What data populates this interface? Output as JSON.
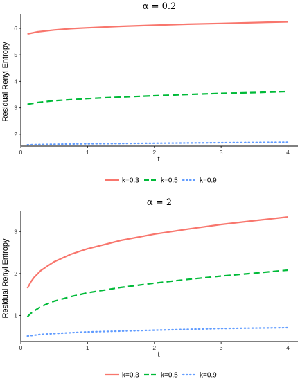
{
  "chart_data": [
    {
      "type": "line",
      "title": "α = 0.2",
      "xlabel": "t",
      "ylabel": "Residual Renyi Entropy",
      "xlim": [
        0,
        4.15
      ],
      "ylim": [
        1.55,
        6.55
      ],
      "xticks": [
        "0",
        "1",
        "2",
        "3",
        "4"
      ],
      "yticks": [
        "2",
        "3",
        "4",
        "5",
        "6"
      ],
      "grid": false,
      "legend_position": "bottom",
      "x": [
        0.1,
        0.25,
        0.5,
        0.75,
        1.0,
        1.5,
        2.0,
        2.5,
        3.0,
        3.5,
        4.0
      ],
      "series": [
        {
          "name": "k=0.3",
          "color": "#F8766D",
          "dash": "solid",
          "values": [
            5.79,
            5.87,
            5.94,
            5.99,
            6.02,
            6.08,
            6.12,
            6.16,
            6.19,
            6.22,
            6.25
          ]
        },
        {
          "name": "k=0.5",
          "color": "#00BA38",
          "dash": "dashed",
          "values": [
            3.13,
            3.2,
            3.27,
            3.31,
            3.35,
            3.41,
            3.46,
            3.51,
            3.55,
            3.58,
            3.62
          ]
        },
        {
          "name": "k=0.9",
          "color": "#619CFF",
          "dash": "dotted",
          "values": [
            1.6,
            1.61,
            1.62,
            1.63,
            1.64,
            1.65,
            1.66,
            1.67,
            1.68,
            1.69,
            1.7
          ]
        }
      ]
    },
    {
      "type": "line",
      "title": "α = 2",
      "xlabel": "t",
      "ylabel": "Residual Renyi Entropy",
      "xlim": [
        0,
        4.15
      ],
      "ylim": [
        0.38,
        3.5
      ],
      "xticks": [
        "0",
        "1",
        "2",
        "3",
        "4"
      ],
      "yticks": [
        "1",
        "2",
        "3"
      ],
      "grid": false,
      "legend_position": "bottom",
      "x": [
        0.1,
        0.15,
        0.2,
        0.3,
        0.4,
        0.5,
        0.75,
        1.0,
        1.5,
        2.0,
        2.5,
        3.0,
        3.5,
        4.0
      ],
      "series": [
        {
          "name": "k=0.3",
          "color": "#F8766D",
          "dash": "solid",
          "values": [
            1.65,
            1.8,
            1.91,
            2.07,
            2.18,
            2.28,
            2.46,
            2.59,
            2.79,
            2.94,
            3.06,
            3.17,
            3.26,
            3.35
          ]
        },
        {
          "name": "k=0.5",
          "color": "#00BA38",
          "dash": "dashed",
          "values": [
            0.97,
            1.05,
            1.11,
            1.21,
            1.28,
            1.34,
            1.45,
            1.54,
            1.67,
            1.77,
            1.86,
            1.94,
            2.01,
            2.08
          ]
        },
        {
          "name": "k=0.9",
          "color": "#619CFF",
          "dash": "dotted",
          "values": [
            0.51,
            0.52,
            0.53,
            0.55,
            0.56,
            0.57,
            0.59,
            0.61,
            0.63,
            0.65,
            0.67,
            0.69,
            0.7,
            0.71
          ]
        }
      ]
    }
  ]
}
